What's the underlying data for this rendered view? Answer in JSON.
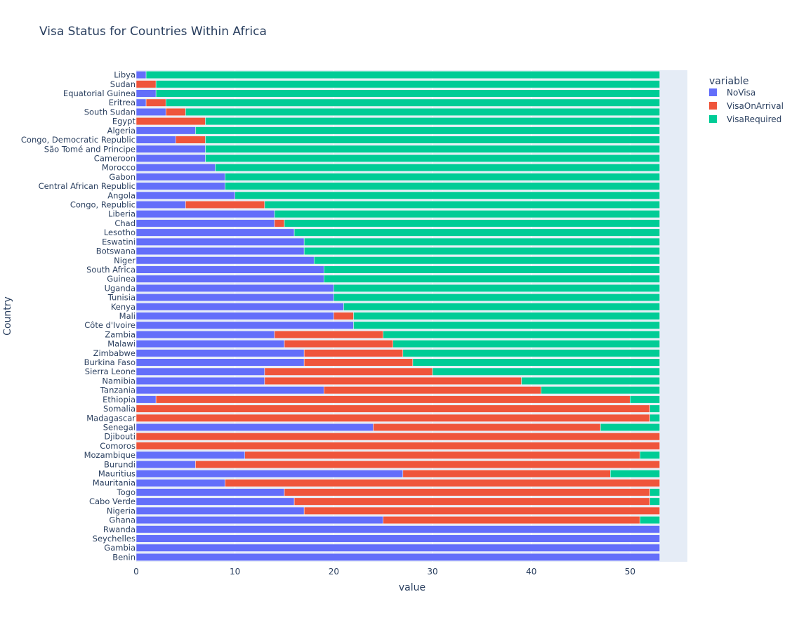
{
  "chart_data": {
    "type": "bar",
    "orientation": "horizontal",
    "barmode": "stack",
    "title": "Visa Status for Countries Within Africa",
    "xlabel": "value",
    "ylabel": "Country",
    "xlim": [
      0,
      55.8
    ],
    "xticks": [
      0,
      10,
      20,
      30,
      40,
      50
    ],
    "legend_title": "variable",
    "legend_position": "top-right",
    "series": [
      {
        "name": "NoVisa",
        "color": "#636efa"
      },
      {
        "name": "VisaOnArrival",
        "color": "#ef553b"
      },
      {
        "name": "VisaRequired",
        "color": "#00cc96"
      }
    ],
    "rows": [
      {
        "country": "Libya",
        "values": [
          1,
          0,
          52
        ]
      },
      {
        "country": "Sudan",
        "values": [
          0,
          2,
          51
        ]
      },
      {
        "country": "Equatorial Guinea",
        "values": [
          2,
          0,
          51
        ]
      },
      {
        "country": "Eritrea",
        "values": [
          1,
          2,
          50
        ]
      },
      {
        "country": "South Sudan",
        "values": [
          3,
          2,
          48
        ]
      },
      {
        "country": "Egypt",
        "values": [
          0,
          7,
          46
        ]
      },
      {
        "country": "Algeria",
        "values": [
          6,
          0,
          47
        ]
      },
      {
        "country": "Congo, Democratic Republic",
        "values": [
          4,
          3,
          46
        ]
      },
      {
        "country": "São Tomé and Principe",
        "values": [
          7,
          0,
          46
        ]
      },
      {
        "country": "Cameroon",
        "values": [
          7,
          0,
          46
        ]
      },
      {
        "country": "Morocco",
        "values": [
          8,
          0,
          45
        ]
      },
      {
        "country": "Gabon",
        "values": [
          9,
          0,
          44
        ]
      },
      {
        "country": "Central African Republic",
        "values": [
          9,
          0,
          44
        ]
      },
      {
        "country": "Angola",
        "values": [
          10,
          0,
          43
        ]
      },
      {
        "country": "Congo, Republic",
        "values": [
          5,
          8,
          40
        ]
      },
      {
        "country": "Liberia",
        "values": [
          14,
          0,
          39
        ]
      },
      {
        "country": "Chad",
        "values": [
          14,
          1,
          38
        ]
      },
      {
        "country": "Lesotho",
        "values": [
          16,
          0,
          37
        ]
      },
      {
        "country": "Eswatini",
        "values": [
          17,
          0,
          36
        ]
      },
      {
        "country": "Botswana",
        "values": [
          17,
          0,
          36
        ]
      },
      {
        "country": "Niger",
        "values": [
          18,
          0,
          35
        ]
      },
      {
        "country": "South Africa",
        "values": [
          19,
          0,
          34
        ]
      },
      {
        "country": "Guinea",
        "values": [
          19,
          0,
          34
        ]
      },
      {
        "country": "Uganda",
        "values": [
          20,
          0,
          33
        ]
      },
      {
        "country": "Tunisia",
        "values": [
          20,
          0,
          33
        ]
      },
      {
        "country": "Kenya",
        "values": [
          21,
          0,
          32
        ]
      },
      {
        "country": "Mali",
        "values": [
          20,
          2,
          31
        ]
      },
      {
        "country": "Côte d'Ivoire",
        "values": [
          22,
          0,
          31
        ]
      },
      {
        "country": "Zambia",
        "values": [
          14,
          11,
          28
        ]
      },
      {
        "country": "Malawi",
        "values": [
          15,
          11,
          27
        ]
      },
      {
        "country": "Zimbabwe",
        "values": [
          17,
          10,
          26
        ]
      },
      {
        "country": "Burkina Faso",
        "values": [
          17,
          11,
          25
        ]
      },
      {
        "country": "Sierra Leone",
        "values": [
          13,
          17,
          23
        ]
      },
      {
        "country": "Namibia",
        "values": [
          13,
          26,
          14
        ]
      },
      {
        "country": "Tanzania",
        "values": [
          19,
          22,
          12
        ]
      },
      {
        "country": "Ethiopia",
        "values": [
          2,
          48,
          3
        ]
      },
      {
        "country": "Somalia",
        "values": [
          0,
          52,
          1
        ]
      },
      {
        "country": "Madagascar",
        "values": [
          0,
          52,
          1
        ]
      },
      {
        "country": "Senegal",
        "values": [
          24,
          23,
          6
        ]
      },
      {
        "country": "Djibouti",
        "values": [
          0,
          53,
          0
        ]
      },
      {
        "country": "Comoros",
        "values": [
          0,
          53,
          0
        ]
      },
      {
        "country": "Mozambique",
        "values": [
          11,
          40,
          2
        ]
      },
      {
        "country": "Burundi",
        "values": [
          6,
          47,
          0
        ]
      },
      {
        "country": "Mauritius",
        "values": [
          27,
          21,
          5
        ]
      },
      {
        "country": "Mauritania",
        "values": [
          9,
          44,
          0
        ]
      },
      {
        "country": "Togo",
        "values": [
          15,
          37,
          1
        ]
      },
      {
        "country": "Cabo Verde",
        "values": [
          16,
          36,
          1
        ]
      },
      {
        "country": "Nigeria",
        "values": [
          17,
          36,
          0
        ]
      },
      {
        "country": "Ghana",
        "values": [
          25,
          26,
          2
        ]
      },
      {
        "country": "Rwanda",
        "values": [
          53,
          0,
          0
        ]
      },
      {
        "country": "Seychelles",
        "values": [
          53,
          0,
          0
        ]
      },
      {
        "country": "Gambia",
        "values": [
          53,
          0,
          0
        ]
      },
      {
        "country": "Benin",
        "values": [
          53,
          0,
          0
        ]
      }
    ]
  }
}
